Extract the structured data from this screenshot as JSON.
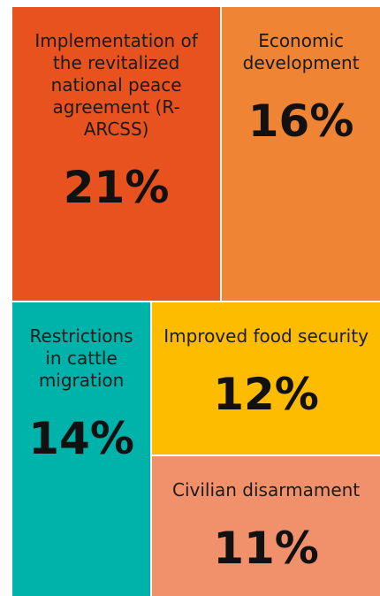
{
  "chart_data": {
    "type": "treemap",
    "categories": [
      "Implementation of the revitalized national peace agreement (R-ARCSS)",
      "Economic development",
      "Restrictions in cattle migration",
      "Improved food security",
      "Civilian disarmament"
    ],
    "values": [
      21,
      16,
      14,
      12,
      11
    ],
    "value_labels": [
      "21%",
      "16%",
      "14%",
      "12%",
      "11%"
    ],
    "colors": [
      "#e8521f",
      "#ee8434",
      "#00b3aa",
      "#fdbc00",
      "#f0916c"
    ]
  }
}
